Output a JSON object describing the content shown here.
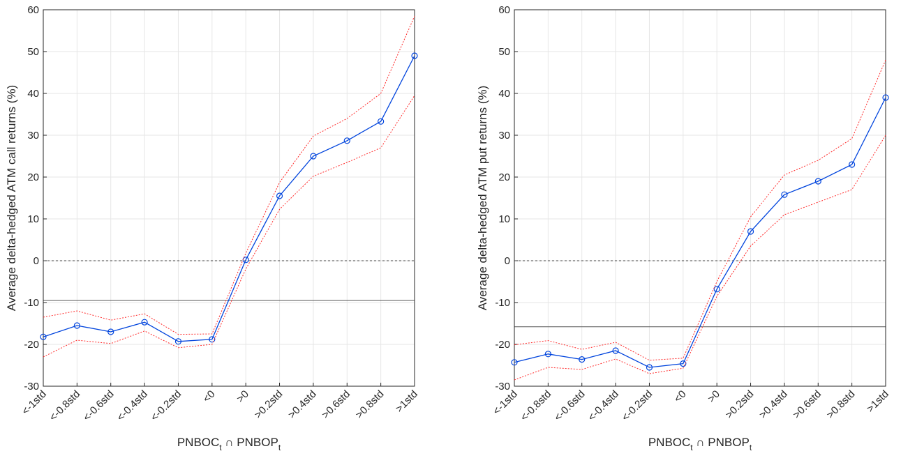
{
  "chart_data": [
    {
      "type": "line",
      "ylabel": "Average delta-hedged ATM call returns (%)",
      "xlabel": [
        "PNBOC",
        "t",
        " ∩ PNBOP",
        "t"
      ],
      "categories": [
        "<-1std",
        "<-0.8std",
        "<-0.6std",
        "<-0.4std",
        "<-0.2std",
        "<0",
        ">0",
        ">0.2std",
        ">0.4std",
        ">0.6std",
        ">0.8std",
        ">1std"
      ],
      "ylim": [
        -30,
        60
      ],
      "yticks": [
        -30,
        -20,
        -10,
        0,
        10,
        20,
        30,
        40,
        50,
        60
      ],
      "grid": true,
      "series": [
        {
          "color": "#0044dd",
          "style": "solid",
          "marker": "circle",
          "values": [
            -18.2,
            -15.5,
            -17,
            -14.7,
            -19.3,
            -18.8,
            0.2,
            15.5,
            25,
            28.7,
            33.3,
            49
          ]
        },
        {
          "color": "#ff2a2a",
          "style": "dotted",
          "values": [
            -13.5,
            -12,
            -14.2,
            -12.7,
            -17.6,
            -17.5,
            1.8,
            18.7,
            29.8,
            34,
            40,
            58.5
          ]
        },
        {
          "color": "#ff2a2a",
          "style": "dotted",
          "values": [
            -23,
            -19,
            -19.8,
            -16.8,
            -20.8,
            -20,
            -2,
            12.3,
            20.2,
            23.5,
            27,
            39.5
          ]
        }
      ],
      "hlines": [
        {
          "value": 0,
          "color": "#444444",
          "style": "dashed"
        },
        {
          "value": -9.5,
          "color": "#555555",
          "style": "solid"
        }
      ]
    },
    {
      "type": "line",
      "ylabel": "Average delta-hedged ATM put returns (%)",
      "xlabel": [
        "PNBOC",
        "t",
        " ∩ PNBOP",
        "t"
      ],
      "categories": [
        "<-1std",
        "<-0.8std",
        "<-0.6std",
        "<-0.4std",
        "<-0.2std",
        "<0",
        ">0",
        ">0.2std",
        ">0.4std",
        ">0.6std",
        ">0.8std",
        ">1std"
      ],
      "ylim": [
        -30,
        60
      ],
      "yticks": [
        -30,
        -20,
        -10,
        0,
        10,
        20,
        30,
        40,
        50,
        60
      ],
      "grid": true,
      "series": [
        {
          "color": "#0044dd",
          "style": "solid",
          "marker": "circle",
          "values": [
            -24.3,
            -22.3,
            -23.6,
            -21.5,
            -25.5,
            -24.6,
            -6.8,
            7,
            15.8,
            19,
            23,
            39
          ]
        },
        {
          "color": "#ff2a2a",
          "style": "dotted",
          "values": [
            -20.1,
            -19.1,
            -21.2,
            -19.5,
            -23.8,
            -23.3,
            -5,
            10.5,
            20.5,
            24,
            29.2,
            48
          ]
        },
        {
          "color": "#ff2a2a",
          "style": "dotted",
          "values": [
            -28.5,
            -25.5,
            -26,
            -23.5,
            -27,
            -25.7,
            -8.5,
            3.5,
            11,
            14,
            17,
            30
          ]
        }
      ],
      "hlines": [
        {
          "value": 0,
          "color": "#444444",
          "style": "dashed"
        },
        {
          "value": -15.8,
          "color": "#555555",
          "style": "solid"
        }
      ]
    }
  ]
}
